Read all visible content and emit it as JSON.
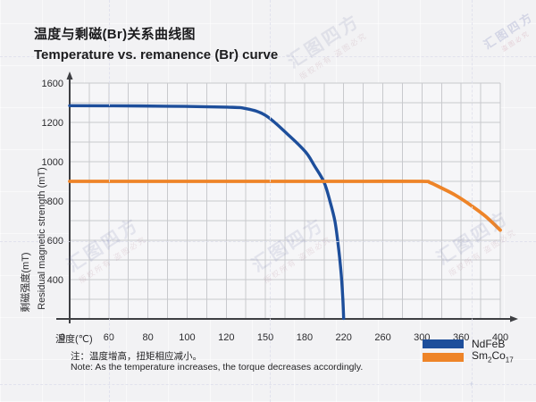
{
  "header": {
    "title_zh": "温度与剩磁(Br)关系曲线图",
    "title_en": "Temperature vs. remanence (Br) curve"
  },
  "chart_data": {
    "type": "line",
    "xlabel": "温度(℃)",
    "ylabel_zh": "剩磁强度(mT)",
    "ylabel_en": "Residual magnetic strength (mT)",
    "x_tick_labels": [
      0,
      60,
      80,
      100,
      120,
      150,
      180,
      220,
      260,
      300,
      360,
      400
    ],
    "y_tick_labels": [
      1600,
      1200,
      1000,
      800,
      600,
      400
    ],
    "ylim": [
      0,
      1600
    ],
    "xlim": [
      0,
      400
    ],
    "tick_spacing": "even",
    "grid": "on",
    "legend_position": "bottom-right",
    "axis_color": "#3e3f43",
    "grid_color": "#c8c9cd",
    "series": [
      {
        "name": "NdFeB",
        "color": "#1d4e9b",
        "points": [
          [
            0,
            1370
          ],
          [
            50,
            1369
          ],
          [
            90,
            1365
          ],
          [
            120,
            1355
          ],
          [
            135,
            1340
          ],
          [
            150,
            1272
          ],
          [
            167,
            1140
          ],
          [
            181,
            1050
          ],
          [
            190,
            980
          ],
          [
            200,
            895
          ],
          [
            206,
            798
          ],
          [
            211,
            698
          ],
          [
            214,
            590
          ],
          [
            217,
            455
          ],
          [
            219,
            230
          ],
          [
            220,
            5
          ]
        ]
      },
      {
        "name": "Sm2Co17",
        "color": "#ee8428",
        "points": [
          [
            0,
            900
          ],
          [
            60,
            900
          ],
          [
            120,
            900
          ],
          [
            180,
            900
          ],
          [
            240,
            900
          ],
          [
            300,
            900
          ],
          [
            312,
            894
          ],
          [
            330,
            866
          ],
          [
            350,
            832
          ],
          [
            370,
            778
          ],
          [
            385,
            722
          ],
          [
            400,
            652
          ]
        ]
      }
    ],
    "legend": [
      {
        "parts": [
          {
            "t": "NdFeB"
          }
        ]
      },
      {
        "parts": [
          {
            "t": "Sm"
          },
          {
            "s": "2"
          },
          {
            "t": "Co"
          },
          {
            "s": "17"
          }
        ]
      }
    ]
  },
  "note": {
    "zh": "注：温度增高，扭矩相应减小。",
    "en": "Note: As the temperature increases, the torque decreases accordingly."
  },
  "watermarks": {
    "main": "汇图四方",
    "sub": "版权所有 盗图必究",
    "corner_sub": "盗图必究"
  }
}
